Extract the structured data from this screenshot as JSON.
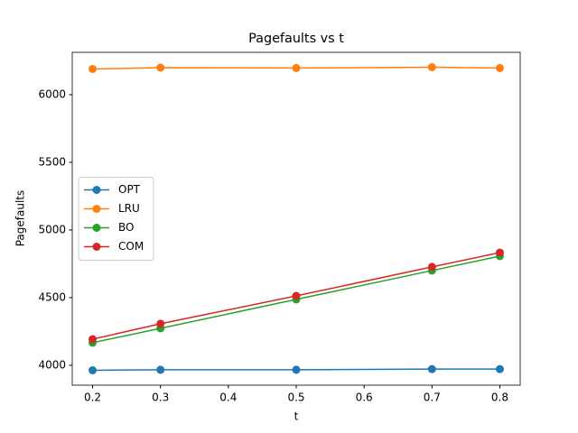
{
  "chart_data": {
    "type": "line",
    "title": "Pagefaults vs t",
    "xlabel": "t",
    "ylabel": "Pagefaults",
    "x": [
      0.2,
      0.3,
      0.5,
      0.7,
      0.8
    ],
    "series": [
      {
        "name": "OPT",
        "color": "#1f77b4",
        "values": [
          3963,
          3967,
          3967,
          3972,
          3972
        ]
      },
      {
        "name": "LRU",
        "color": "#ff7f0e",
        "values": [
          6190,
          6200,
          6197,
          6203,
          6197
        ]
      },
      {
        "name": "BO",
        "color": "#2ca02c",
        "values": [
          4167,
          4273,
          4487,
          4700,
          4807
        ]
      },
      {
        "name": "COM",
        "color": "#d62728",
        "values": [
          4193,
          4307,
          4513,
          4727,
          4833
        ]
      }
    ],
    "xlim": [
      0.17,
      0.83
    ],
    "ylim": [
      3853,
      6313
    ],
    "xticks": [
      0.2,
      0.3,
      0.4,
      0.5,
      0.6,
      0.7,
      0.8
    ],
    "yticks": [
      4000,
      4500,
      5000,
      5500,
      6000
    ],
    "legend": "center left"
  }
}
